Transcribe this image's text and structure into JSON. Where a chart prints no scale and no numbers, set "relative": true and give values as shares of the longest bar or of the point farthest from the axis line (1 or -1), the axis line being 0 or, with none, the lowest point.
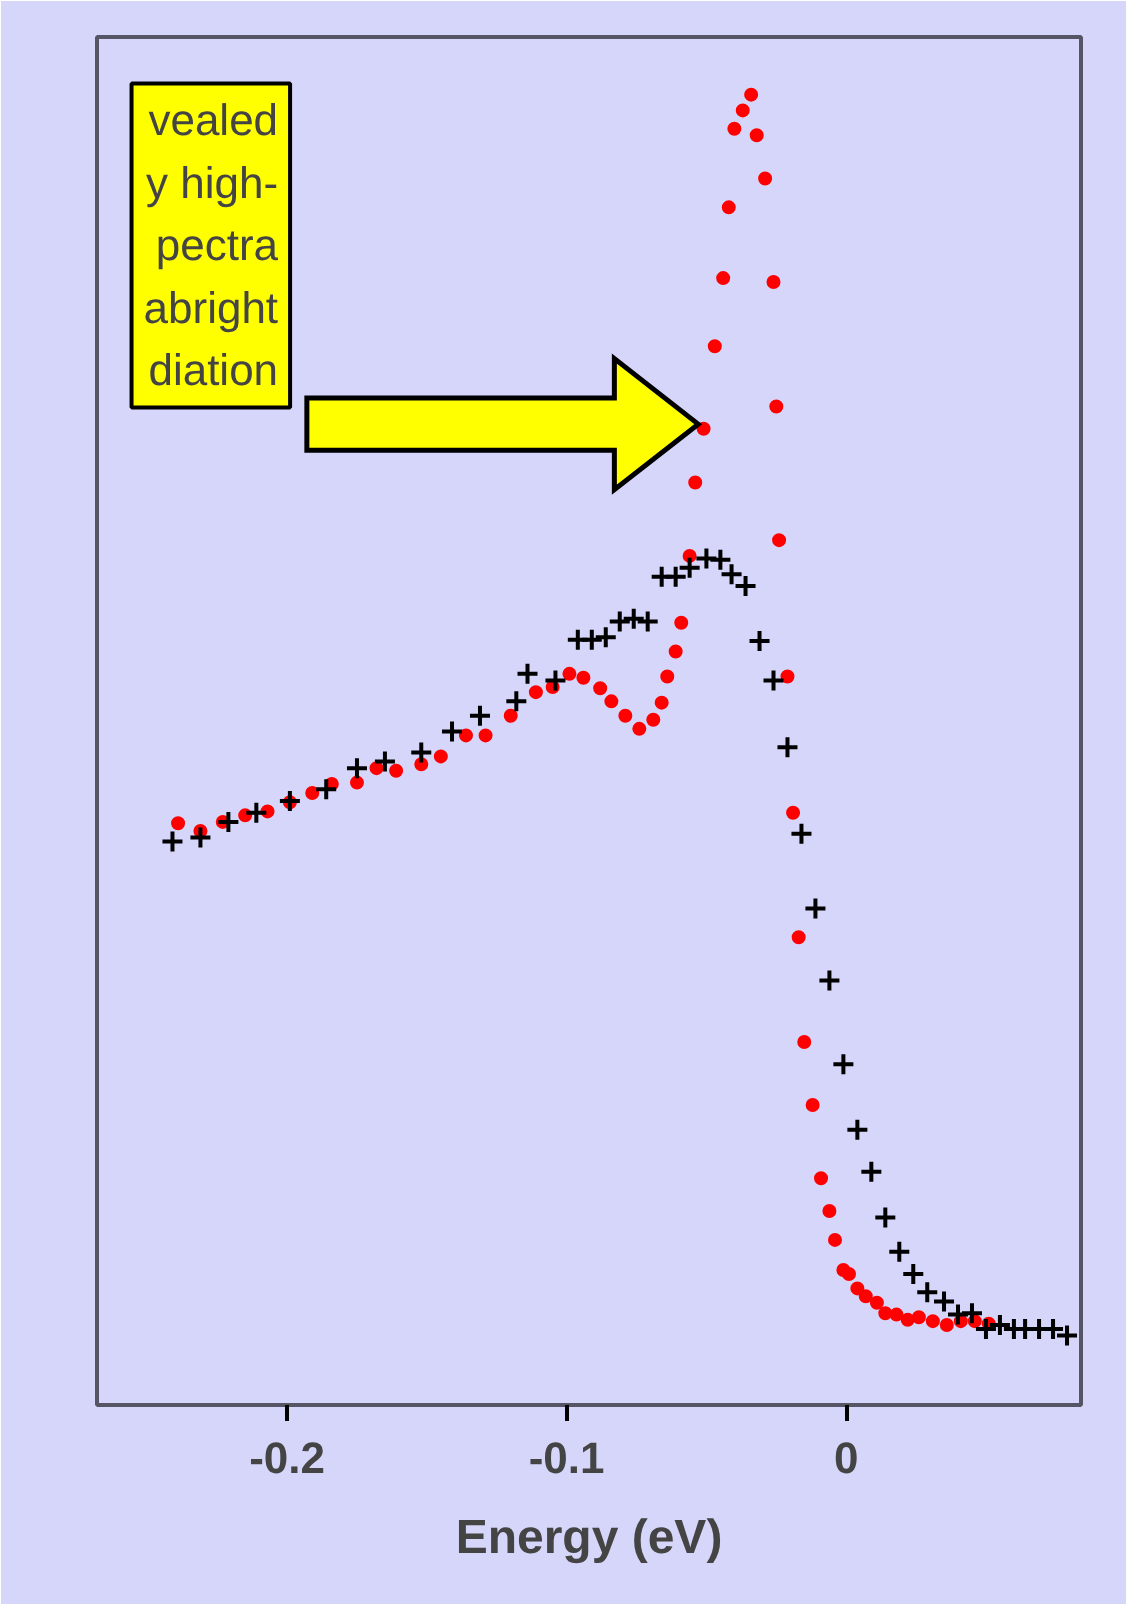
{
  "chart_data": {
    "type": "scatter",
    "relative": true,
    "xlabel": "Energy (eV)",
    "xlim": [
      -0.268,
      0.084
    ],
    "xticks": [
      -0.2,
      -0.1,
      0
    ],
    "grid": false,
    "annotations": [
      "vealed\ny high-\npectra\nabright\ndiation"
    ],
    "series": [
      {
        "color": "#ff0000",
        "marker": "circle",
        "x": [
          -0.239,
          -0.231,
          -0.223,
          -0.215,
          -0.207,
          -0.199,
          -0.191,
          -0.184,
          -0.175,
          -0.168,
          -0.161,
          -0.152,
          -0.145,
          -0.136,
          -0.129,
          -0.12,
          -0.111,
          -0.105,
          -0.099,
          -0.094,
          -0.088,
          -0.084,
          -0.079,
          -0.074,
          -0.069,
          -0.066,
          -0.064,
          -0.061,
          -0.059,
          -0.056,
          -0.054,
          -0.051,
          -0.047,
          -0.044,
          -0.042,
          -0.04,
          -0.037,
          -0.034,
          -0.032,
          -0.029,
          -0.026,
          -0.025,
          -0.024,
          -0.021,
          -0.019,
          -0.017,
          -0.015,
          -0.012,
          -0.009,
          -0.006,
          -0.004,
          -0.001,
          0.001,
          0.004,
          0.007,
          0.011,
          0.014,
          0.018,
          0.022,
          0.026,
          0.031,
          0.036,
          0.041,
          0.046,
          0.051
        ],
        "values": [
          0.444,
          0.438,
          0.445,
          0.45,
          0.453,
          0.46,
          0.467,
          0.474,
          0.475,
          0.486,
          0.484,
          0.489,
          0.495,
          0.511,
          0.511,
          0.526,
          0.544,
          0.548,
          0.558,
          0.555,
          0.547,
          0.537,
          0.526,
          0.516,
          0.523,
          0.536,
          0.556,
          0.575,
          0.597,
          0.648,
          0.704,
          0.745,
          0.808,
          0.86,
          0.914,
          0.974,
          0.988,
          1,
          0.969,
          0.936,
          0.857,
          0.762,
          0.66,
          0.556,
          0.452,
          0.357,
          0.277,
          0.229,
          0.173,
          0.148,
          0.126,
          0.103,
          0.1,
          0.089,
          0.083,
          0.078,
          0.07,
          0.069,
          0.065,
          0.067,
          0.064,
          0.061,
          0.064,
          0.064,
          0.062
        ]
      },
      {
        "color": "#000000",
        "marker": "cross",
        "x": [
          -0.241,
          -0.231,
          -0.221,
          -0.211,
          -0.199,
          -0.186,
          -0.175,
          -0.165,
          -0.152,
          -0.141,
          -0.131,
          -0.118,
          -0.114,
          -0.104,
          -0.096,
          -0.091,
          -0.086,
          -0.081,
          -0.076,
          -0.071,
          -0.066,
          -0.061,
          -0.056,
          -0.05,
          -0.045,
          -0.041,
          -0.036,
          -0.031,
          -0.026,
          -0.021,
          -0.016,
          -0.011,
          -0.006,
          -0.001,
          0.004,
          0.009,
          0.014,
          0.019,
          0.024,
          0.029,
          0.035,
          0.04,
          0.045,
          0.05,
          0.055,
          0.06,
          0.064,
          0.069,
          0.074,
          0.079
        ],
        "values": [
          0.43,
          0.433,
          0.445,
          0.452,
          0.461,
          0.47,
          0.486,
          0.491,
          0.498,
          0.514,
          0.526,
          0.537,
          0.558,
          0.553,
          0.584,
          0.584,
          0.586,
          0.598,
          0.6,
          0.598,
          0.632,
          0.632,
          0.639,
          0.646,
          0.645,
          0.634,
          0.625,
          0.583,
          0.553,
          0.502,
          0.436,
          0.379,
          0.324,
          0.26,
          0.21,
          0.178,
          0.143,
          0.117,
          0.1,
          0.086,
          0.079,
          0.069,
          0.07,
          0.058,
          0.061,
          0.058,
          0.058,
          0.058,
          0.058,
          0.053
        ]
      }
    ]
  }
}
